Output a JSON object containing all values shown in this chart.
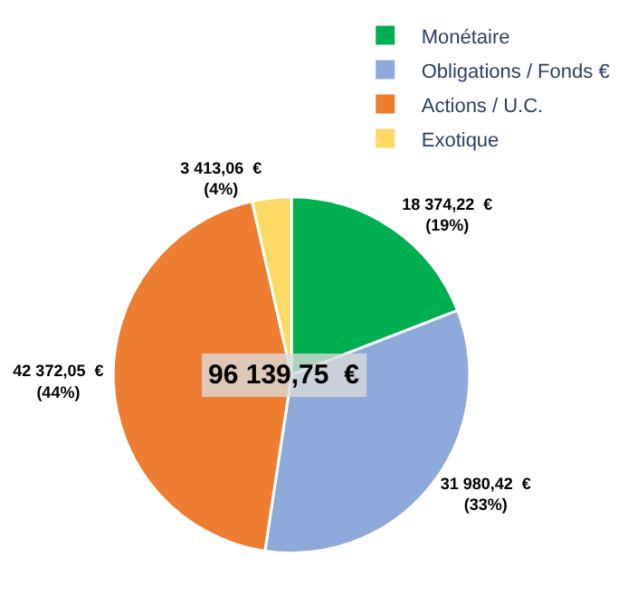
{
  "chart_data": {
    "type": "pie",
    "categories": [
      "Monétaire",
      "Obligations / Fonds €",
      "Actions / U.C.",
      "Exotique"
    ],
    "values": [
      18374.22,
      31980.42,
      42372.05,
      3413.06
    ],
    "colors": [
      "#00b050",
      "#8eaadb",
      "#ed7d31",
      "#ffd966"
    ],
    "value_labels": [
      "18 374,22  €\n(19%)",
      "31 980,42  €\n(33%)",
      "42 372,05  €\n(44%)",
      "3 413,06  €\n(4%)"
    ],
    "annotations": [
      "96 139,75  €"
    ],
    "legend": "top right"
  }
}
